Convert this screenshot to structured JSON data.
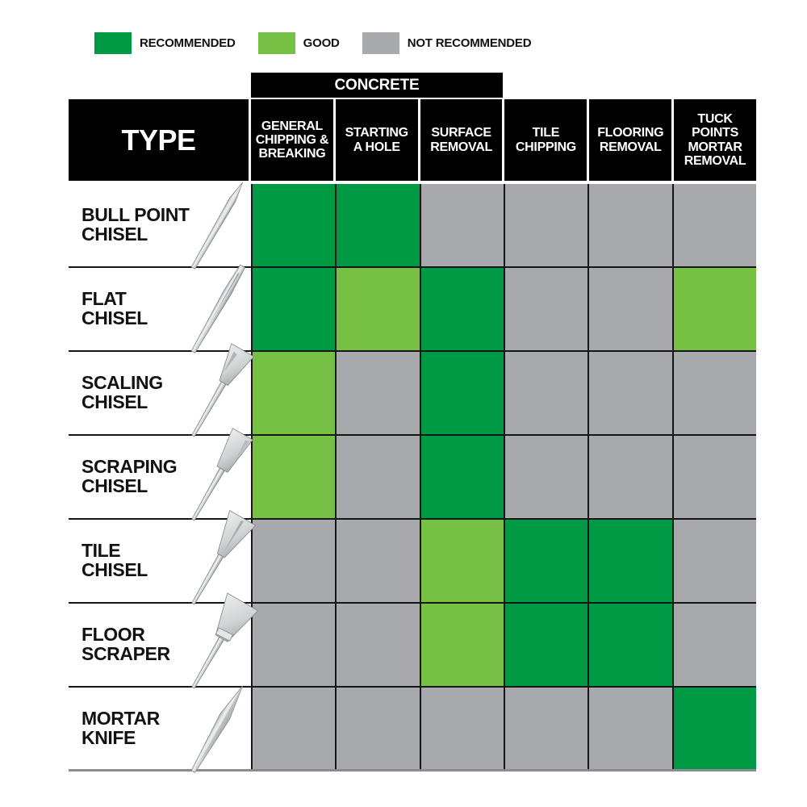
{
  "colors": {
    "recommended": "#009A44",
    "good": "#76C043",
    "not_recommended": "#A7A9AC",
    "header_bg": "#000000",
    "header_text": "#FFFFFF",
    "grid_line": "#161616",
    "bottom_line": "#8C8C8E",
    "background": "#FFFFFF"
  },
  "legend": {
    "items": [
      {
        "key": "recommended",
        "label": "RECOMMENDED",
        "color": "#009A44"
      },
      {
        "key": "good",
        "label": "GOOD",
        "color": "#76C043"
      },
      {
        "key": "not_recommended",
        "label": "NOT RECOMMENDED",
        "color": "#A7A9AC"
      }
    ]
  },
  "table": {
    "group_header": "CONCRETE",
    "type_header": "TYPE",
    "columns": [
      {
        "label": "GENERAL CHIPPING & BREAKING",
        "lines": [
          "GENERAL",
          "CHIPPING &",
          "BREAKING"
        ],
        "group": "concrete"
      },
      {
        "label": "STARTING A HOLE",
        "lines": [
          "STARTING",
          "A HOLE"
        ],
        "group": "concrete"
      },
      {
        "label": "SURFACE REMOVAL",
        "lines": [
          "SURFACE",
          "REMOVAL"
        ],
        "group": "concrete"
      },
      {
        "label": "TILE CHIPPING",
        "lines": [
          "TILE",
          "CHIPPING"
        ],
        "group": ""
      },
      {
        "label": "FLOORING REMOVAL",
        "lines": [
          "FLOORING",
          "REMOVAL"
        ],
        "group": ""
      },
      {
        "label": "TUCK POINTS MORTAR REMOVAL",
        "lines": [
          "TUCK",
          "POINTS",
          "MORTAR",
          "REMOVAL"
        ],
        "group": ""
      }
    ],
    "rows": [
      {
        "label": "BULL POINT CHISEL",
        "label_lines": [
          "BULL POINT",
          "CHISEL"
        ],
        "icon": "bull-point-chisel-image",
        "statuses": [
          "recommended",
          "recommended",
          "not_recommended",
          "not_recommended",
          "not_recommended",
          "not_recommended"
        ]
      },
      {
        "label": "FLAT CHISEL",
        "label_lines": [
          "FLAT",
          "CHISEL"
        ],
        "icon": "flat-chisel-image",
        "statuses": [
          "recommended",
          "good",
          "recommended",
          "not_recommended",
          "not_recommended",
          "good"
        ]
      },
      {
        "label": "SCALING CHISEL",
        "label_lines": [
          "SCALING",
          "CHISEL"
        ],
        "icon": "scaling-chisel-image",
        "statuses": [
          "good",
          "not_recommended",
          "recommended",
          "not_recommended",
          "not_recommended",
          "not_recommended"
        ]
      },
      {
        "label": "SCRAPING CHISEL",
        "label_lines": [
          "SCRAPING",
          "CHISEL"
        ],
        "icon": "scraping-chisel-image",
        "statuses": [
          "good",
          "not_recommended",
          "recommended",
          "not_recommended",
          "not_recommended",
          "not_recommended"
        ]
      },
      {
        "label": "TILE CHISEL",
        "label_lines": [
          "TILE",
          "CHISEL"
        ],
        "icon": "tile-chisel-image",
        "statuses": [
          "not_recommended",
          "not_recommended",
          "good",
          "recommended",
          "recommended",
          "not_recommended"
        ]
      },
      {
        "label": "FLOOR SCRAPER",
        "label_lines": [
          "FLOOR",
          "SCRAPER"
        ],
        "icon": "floor-scraper-image",
        "statuses": [
          "not_recommended",
          "not_recommended",
          "good",
          "recommended",
          "recommended",
          "not_recommended"
        ]
      },
      {
        "label": "MORTAR KNIFE",
        "label_lines": [
          "MORTAR",
          "KNIFE"
        ],
        "icon": "mortar-knife-image",
        "statuses": [
          "not_recommended",
          "not_recommended",
          "not_recommended",
          "not_recommended",
          "not_recommended",
          "recommended"
        ]
      }
    ]
  },
  "chart_data": {
    "type": "table",
    "title": "Chisel type application matrix",
    "legend": [
      "RECOMMENDED",
      "GOOD",
      "NOT RECOMMENDED"
    ],
    "legend_colors": {
      "RECOMMENDED": "#009A44",
      "GOOD": "#76C043",
      "NOT RECOMMENDED": "#A7A9AC"
    },
    "column_groups": [
      {
        "label": "CONCRETE",
        "columns": [
          0,
          1,
          2
        ]
      }
    ],
    "columns": [
      "GENERAL CHIPPING & BREAKING",
      "STARTING A HOLE",
      "SURFACE REMOVAL",
      "TILE CHIPPING",
      "FLOORING REMOVAL",
      "TUCK POINTS MORTAR REMOVAL"
    ],
    "rows": [
      "BULL POINT CHISEL",
      "FLAT CHISEL",
      "SCALING CHISEL",
      "SCRAPING CHISEL",
      "TILE CHISEL",
      "FLOOR SCRAPER",
      "MORTAR KNIFE"
    ],
    "values": [
      [
        "RECOMMENDED",
        "RECOMMENDED",
        "NOT RECOMMENDED",
        "NOT RECOMMENDED",
        "NOT RECOMMENDED",
        "NOT RECOMMENDED"
      ],
      [
        "RECOMMENDED",
        "GOOD",
        "RECOMMENDED",
        "NOT RECOMMENDED",
        "NOT RECOMMENDED",
        "GOOD"
      ],
      [
        "GOOD",
        "NOT RECOMMENDED",
        "RECOMMENDED",
        "NOT RECOMMENDED",
        "NOT RECOMMENDED",
        "NOT RECOMMENDED"
      ],
      [
        "GOOD",
        "NOT RECOMMENDED",
        "RECOMMENDED",
        "NOT RECOMMENDED",
        "NOT RECOMMENDED",
        "NOT RECOMMENDED"
      ],
      [
        "NOT RECOMMENDED",
        "NOT RECOMMENDED",
        "GOOD",
        "RECOMMENDED",
        "RECOMMENDED",
        "NOT RECOMMENDED"
      ],
      [
        "NOT RECOMMENDED",
        "NOT RECOMMENDED",
        "GOOD",
        "RECOMMENDED",
        "RECOMMENDED",
        "NOT RECOMMENDED"
      ],
      [
        "NOT RECOMMENDED",
        "NOT RECOMMENDED",
        "NOT RECOMMENDED",
        "NOT RECOMMENDED",
        "NOT RECOMMENDED",
        "RECOMMENDED"
      ]
    ]
  }
}
